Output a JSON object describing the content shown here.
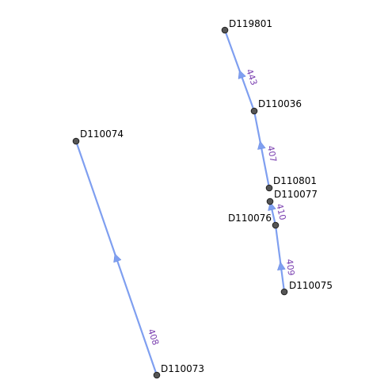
{
  "colors": {
    "edge": "#7f9ff0",
    "node_fill": "#555555",
    "node_stroke": "#222222",
    "node_label": "#000000",
    "edge_label": "#7a3fb0",
    "background": "#ffffff"
  },
  "nodes": [
    {
      "id": "D119801",
      "label": "D119801"
    },
    {
      "id": "D110036",
      "label": "D110036"
    },
    {
      "id": "D110801",
      "label": "D110801"
    },
    {
      "id": "D110077",
      "label": "D110077"
    },
    {
      "id": "D110076",
      "label": "D110076"
    },
    {
      "id": "D110075",
      "label": "D110075"
    },
    {
      "id": "D110074",
      "label": "D110074"
    },
    {
      "id": "D110073",
      "label": "D110073"
    }
  ],
  "edges": [
    {
      "id": "443",
      "label": "443",
      "from": "D110036",
      "to": "D119801"
    },
    {
      "id": "407",
      "label": "407",
      "from": "D110801",
      "to": "D110036"
    },
    {
      "id": "410",
      "label": "410",
      "from": "D110076",
      "to": "D110077"
    },
    {
      "id": "409",
      "label": "409",
      "from": "D110075",
      "to": "D110076"
    },
    {
      "id": "408",
      "label": "408",
      "from": "D110073",
      "to": "D110074"
    }
  ]
}
